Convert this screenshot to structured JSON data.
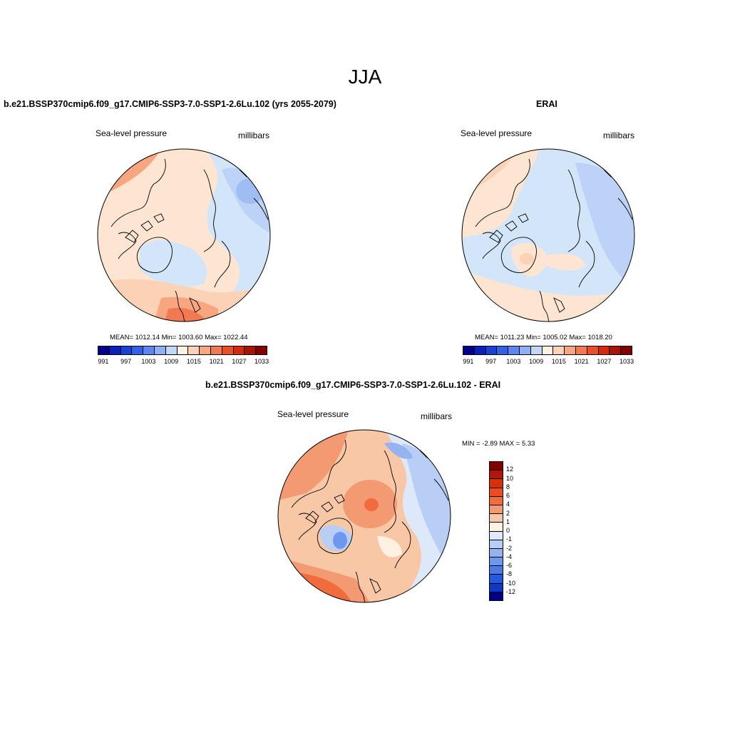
{
  "season": "JJA",
  "panels": [
    {
      "title": "b.e21.BSSP370cmip6.f09_g17.CMIP6-SSP3-7.0-SSP1-2.6Lu.102 (yrs 2055-2079)",
      "variable": "Sea-level pressure",
      "units": "millibars",
      "stats": "MEAN= 1012.14  Min= 1003.60  Max= 1022.44"
    },
    {
      "title": "ERAI",
      "variable": "Sea-level pressure",
      "units": "millibars",
      "stats": "MEAN= 1011.23  Min= 1005.02  Max= 1018.20"
    },
    {
      "title": "b.e21.BSSP370cmip6.f09_g17.CMIP6-SSP3-7.0-SSP1-2.6Lu.102 - ERAI",
      "variable": "Sea-level pressure",
      "units": "millibars",
      "stats": "MIN =  -2.89 MAX =   5.33"
    }
  ],
  "colorbar_abs": {
    "colors": [
      "#00008b",
      "#0a1fbe",
      "#1842d6",
      "#2f62e8",
      "#5a87f2",
      "#8fb0f5",
      "#c3d7f7",
      "#fff1e2",
      "#fcd2b7",
      "#f7a680",
      "#f27a52",
      "#ec4e26",
      "#d62a0e",
      "#a81505",
      "#840000"
    ],
    "labels": [
      "991",
      "997",
      "1003",
      "1009",
      "1015",
      "1021",
      "1027",
      "1033"
    ]
  },
  "colorbar_diff": {
    "colors": [
      "#840000",
      "#b01805",
      "#d8300c",
      "#ee4c20",
      "#f26b3d",
      "#f49a72",
      "#f8c7a5",
      "#fff1e2",
      "#dde9fa",
      "#b9cef5",
      "#94b4f1",
      "#6e98ee",
      "#4a7ae8",
      "#2558de",
      "#0f37c8",
      "#00008b"
    ],
    "labels": [
      "12",
      "10",
      "8",
      "6",
      "4",
      "2",
      "1",
      "0",
      "-1",
      "-2",
      "-4",
      "-6",
      "-8",
      "-10",
      "-12"
    ]
  }
}
